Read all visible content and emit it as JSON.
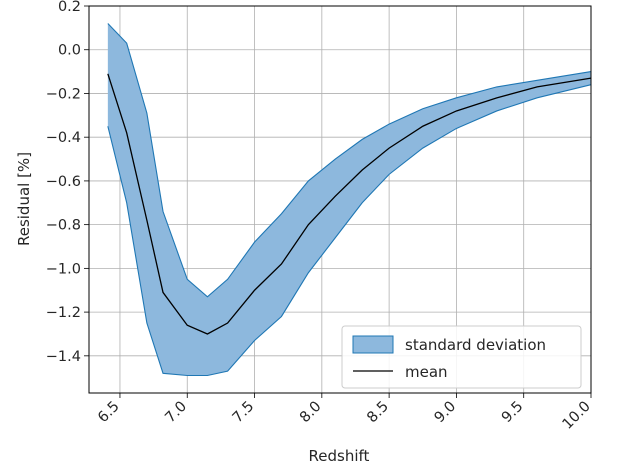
{
  "chart_data": {
    "type": "line",
    "title": "",
    "xlabel": "Redshift",
    "ylabel": "Residual [%]",
    "xlim": [
      6.27,
      10.0
    ],
    "ylim": [
      -1.57,
      0.2
    ],
    "grid": true,
    "legend_position": "bottom-right",
    "x_ticks": [
      6.5,
      7.0,
      7.5,
      8.0,
      8.5,
      9.0,
      9.5,
      10.0
    ],
    "x_tick_labels": [
      "6.5",
      "7.0",
      "7.5",
      "8.0",
      "8.5",
      "9.0",
      "9.5",
      "10.0"
    ],
    "y_ticks": [
      0.2,
      0.0,
      -0.2,
      -0.4,
      -0.6,
      -0.8,
      -1.0,
      -1.2,
      -1.4
    ],
    "y_tick_labels": [
      "0.2",
      "0.0",
      "−0.2",
      "−0.4",
      "−0.6",
      "−0.8",
      "−1.0",
      "−1.2",
      "−1.4"
    ],
    "x": [
      6.41,
      6.55,
      6.7,
      6.82,
      7.0,
      7.15,
      7.3,
      7.5,
      7.7,
      7.9,
      8.1,
      8.3,
      8.5,
      8.75,
      9.0,
      9.3,
      9.6,
      10.0
    ],
    "series": [
      {
        "name": "mean",
        "color": "#000000",
        "values": [
          -0.11,
          -0.38,
          -0.78,
          -1.11,
          -1.26,
          -1.3,
          -1.25,
          -1.1,
          -0.98,
          -0.8,
          -0.67,
          -0.55,
          -0.45,
          -0.35,
          -0.28,
          -0.22,
          -0.17,
          -0.13
        ]
      },
      {
        "name": "standard deviation",
        "kind": "band",
        "fill_color": "#8db8dd",
        "edge_color": "#1f77b4",
        "upper": [
          0.12,
          0.03,
          -0.29,
          -0.74,
          -1.05,
          -1.13,
          -1.05,
          -0.88,
          -0.75,
          -0.6,
          -0.5,
          -0.41,
          -0.34,
          -0.27,
          -0.22,
          -0.17,
          -0.14,
          -0.1
        ],
        "lower": [
          -0.35,
          -0.7,
          -1.25,
          -1.48,
          -1.49,
          -1.49,
          -1.47,
          -1.33,
          -1.22,
          -1.02,
          -0.86,
          -0.7,
          -0.57,
          -0.45,
          -0.36,
          -0.28,
          -0.22,
          -0.16
        ]
      }
    ],
    "legend": [
      {
        "label": "standard deviation",
        "kind": "band"
      },
      {
        "label": "mean",
        "kind": "line"
      }
    ]
  }
}
